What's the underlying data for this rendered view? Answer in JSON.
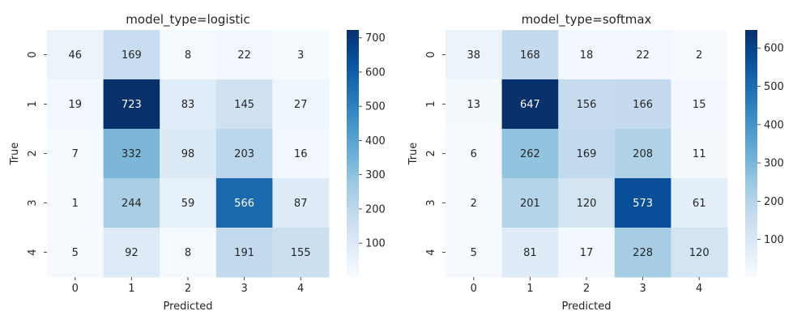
{
  "chart_data": [
    {
      "type": "heatmap",
      "title": "model_type=logistic",
      "xlabel": "Predicted",
      "ylabel": "True",
      "x_categories": [
        "0",
        "1",
        "2",
        "3",
        "4"
      ],
      "y_categories": [
        "0",
        "1",
        "2",
        "3",
        "4"
      ],
      "values": [
        [
          46,
          169,
          8,
          22,
          3
        ],
        [
          19,
          723,
          83,
          145,
          27
        ],
        [
          7,
          332,
          98,
          203,
          16
        ],
        [
          1,
          244,
          59,
          566,
          87
        ],
        [
          5,
          92,
          8,
          191,
          155
        ]
      ],
      "colormap": "Blues",
      "colorbar": {
        "min": 1,
        "max": 723,
        "ticks": [
          100,
          200,
          300,
          400,
          500,
          600,
          700
        ]
      }
    },
    {
      "type": "heatmap",
      "title": "model_type=softmax",
      "xlabel": "Predicted",
      "ylabel": "True",
      "x_categories": [
        "0",
        "1",
        "2",
        "3",
        "4"
      ],
      "y_categories": [
        "0",
        "1",
        "2",
        "3",
        "4"
      ],
      "values": [
        [
          38,
          168,
          18,
          22,
          2
        ],
        [
          13,
          647,
          156,
          166,
          15
        ],
        [
          6,
          262,
          169,
          208,
          11
        ],
        [
          2,
          201,
          120,
          573,
          61
        ],
        [
          5,
          81,
          17,
          228,
          120
        ]
      ],
      "colormap": "Blues",
      "colorbar": {
        "min": 2,
        "max": 647,
        "ticks": [
          100,
          200,
          300,
          400,
          500,
          600
        ]
      }
    }
  ]
}
